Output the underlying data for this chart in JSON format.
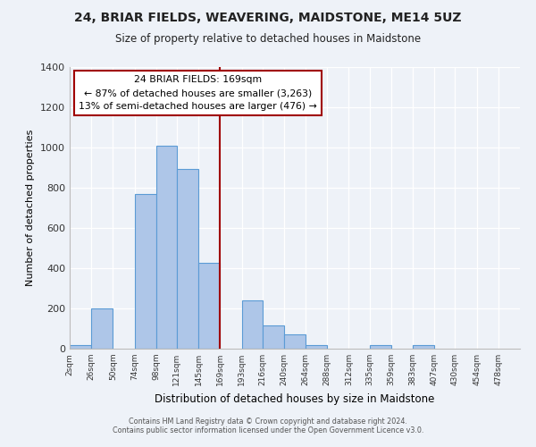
{
  "title": "24, BRIAR FIELDS, WEAVERING, MAIDSTONE, ME14 5UZ",
  "subtitle": "Size of property relative to detached houses in Maidstone",
  "xlabel": "Distribution of detached houses by size in Maidstone",
  "ylabel": "Number of detached properties",
  "bar_left_edges": [
    2,
    26,
    50,
    74,
    98,
    121,
    145,
    169,
    193,
    216,
    240,
    264,
    288,
    312,
    335,
    359,
    383,
    407,
    430,
    454
  ],
  "bar_widths": [
    24,
    24,
    24,
    24,
    23,
    24,
    24,
    24,
    23,
    24,
    24,
    24,
    24,
    23,
    24,
    24,
    24,
    23,
    24,
    24
  ],
  "bar_heights": [
    20,
    200,
    0,
    770,
    1010,
    895,
    425,
    0,
    240,
    115,
    70,
    20,
    0,
    0,
    20,
    0,
    20,
    0,
    0,
    0
  ],
  "bar_color": "#aec6e8",
  "bar_edge_color": "#5b9bd5",
  "vline_x": 169,
  "vline_color": "#a00000",
  "annotation_text_line1": "24 BRIAR FIELDS: 169sqm",
  "annotation_text_line2": "← 87% of detached houses are smaller (3,263)",
  "annotation_text_line3": "13% of semi-detached houses are larger (476) →",
  "xtick_labels": [
    "2sqm",
    "26sqm",
    "50sqm",
    "74sqm",
    "98sqm",
    "121sqm",
    "145sqm",
    "169sqm",
    "193sqm",
    "216sqm",
    "240sqm",
    "264sqm",
    "288sqm",
    "312sqm",
    "335sqm",
    "359sqm",
    "383sqm",
    "407sqm",
    "430sqm",
    "454sqm",
    "478sqm"
  ],
  "xtick_positions": [
    2,
    26,
    50,
    74,
    98,
    121,
    145,
    169,
    193,
    216,
    240,
    264,
    288,
    312,
    335,
    359,
    383,
    407,
    430,
    454,
    478
  ],
  "ylim": [
    0,
    1400
  ],
  "yticks": [
    0,
    200,
    400,
    600,
    800,
    1000,
    1200,
    1400
  ],
  "xlim": [
    2,
    502
  ],
  "footer_line1": "Contains HM Land Registry data © Crown copyright and database right 2024.",
  "footer_line2": "Contains public sector information licensed under the Open Government Licence v3.0.",
  "bg_color": "#eef2f8",
  "plot_bg_color": "#eef2f8"
}
